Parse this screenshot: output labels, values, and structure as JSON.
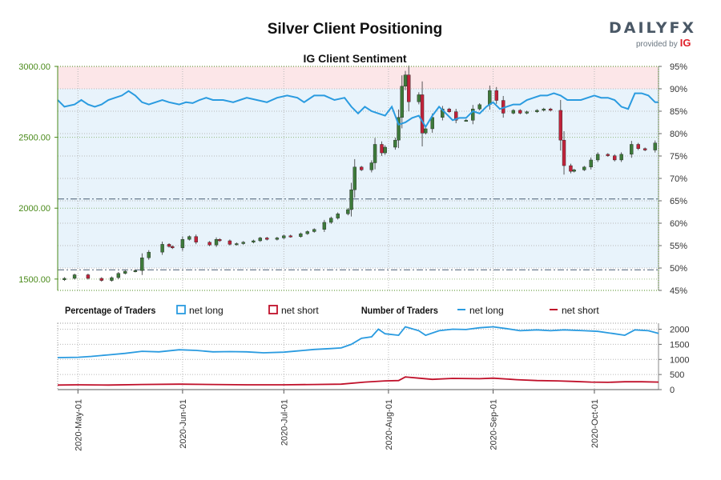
{
  "title": "Silver Client Positioning",
  "brand": {
    "main": "DAILYFX",
    "sub": "provided by",
    "ig": "IG"
  },
  "colors": {
    "net_long": "#2a9be0",
    "net_short": "#c0102a",
    "long_zone": "#e8f3fb",
    "short_zone": "#fce6e8",
    "up_candle": "#3d7a3a",
    "down_candle": "#c0223a",
    "price_axis": "#4a8a1a"
  },
  "chart_data": [
    {
      "type": "candlestick",
      "title": "IG Client Sentiment",
      "y_left": {
        "ticks": [
          "3000.00",
          "2500.00",
          "2000.00",
          "1500.00"
        ],
        "range": [
          1420,
          3000
        ]
      },
      "y_right": {
        "ticks": [
          "95%",
          "90%",
          "85%",
          "80%",
          "75%",
          "70%",
          "65%",
          "60%",
          "55%",
          "50%",
          "45%"
        ],
        "range": [
          45,
          95
        ]
      },
      "reference_lines": [
        2065,
        1565
      ],
      "x_ticks": [
        "2020-May-01",
        "2020-Jun-01",
        "2020-Jul-01",
        "2020-Aug-01",
        "2020-Sep-01",
        "2020-Oct-01"
      ],
      "x_range": [
        "2020-04-25",
        "2020-10-20"
      ],
      "price_series": [
        [
          "2020-04-27",
          1505
        ],
        [
          "2020-04-30",
          1530
        ],
        [
          "2020-05-04",
          1505
        ],
        [
          "2020-05-08",
          1490
        ],
        [
          "2020-05-11",
          1510
        ],
        [
          "2020-05-13",
          1540
        ],
        [
          "2020-05-15",
          1555
        ],
        [
          "2020-05-18",
          1560
        ],
        [
          "2020-05-20",
          1650
        ],
        [
          "2020-05-22",
          1690
        ],
        [
          "2020-05-26",
          1745
        ],
        [
          "2020-05-28",
          1730
        ],
        [
          "2020-05-29",
          1720
        ],
        [
          "2020-06-01",
          1780
        ],
        [
          "2020-06-03",
          1800
        ],
        [
          "2020-06-05",
          1760
        ],
        [
          "2020-06-09",
          1740
        ],
        [
          "2020-06-11",
          1780
        ],
        [
          "2020-06-12",
          1770
        ],
        [
          "2020-06-15",
          1745
        ],
        [
          "2020-06-17",
          1750
        ],
        [
          "2020-06-19",
          1760
        ],
        [
          "2020-06-22",
          1770
        ],
        [
          "2020-06-24",
          1790
        ],
        [
          "2020-06-26",
          1780
        ],
        [
          "2020-06-29",
          1790
        ],
        [
          "2020-07-01",
          1805
        ],
        [
          "2020-07-03",
          1800
        ],
        [
          "2020-07-06",
          1820
        ],
        [
          "2020-07-08",
          1835
        ],
        [
          "2020-07-10",
          1850
        ],
        [
          "2020-07-13",
          1900
        ],
        [
          "2020-07-15",
          1930
        ],
        [
          "2020-07-17",
          1960
        ],
        [
          "2020-07-20",
          1990
        ],
        [
          "2020-07-21",
          2130
        ],
        [
          "2020-07-22",
          2290
        ],
        [
          "2020-07-24",
          2270
        ],
        [
          "2020-07-27",
          2320
        ],
        [
          "2020-07-28",
          2450
        ],
        [
          "2020-07-30",
          2390
        ],
        [
          "2020-07-31",
          2430
        ],
        [
          "2020-08-03",
          2480
        ],
        [
          "2020-08-04",
          2640
        ],
        [
          "2020-08-05",
          2860
        ],
        [
          "2020-08-06",
          2940
        ],
        [
          "2020-08-07",
          2750
        ],
        [
          "2020-08-10",
          2800
        ],
        [
          "2020-08-11",
          2530
        ],
        [
          "2020-08-12",
          2560
        ],
        [
          "2020-08-14",
          2640
        ],
        [
          "2020-08-17",
          2700
        ],
        [
          "2020-08-19",
          2680
        ],
        [
          "2020-08-21",
          2620
        ],
        [
          "2020-08-24",
          2620
        ],
        [
          "2020-08-26",
          2700
        ],
        [
          "2020-08-28",
          2730
        ],
        [
          "2020-08-31",
          2830
        ],
        [
          "2020-09-02",
          2760
        ],
        [
          "2020-09-04",
          2670
        ],
        [
          "2020-09-07",
          2690
        ],
        [
          "2020-09-09",
          2670
        ],
        [
          "2020-09-11",
          2680
        ],
        [
          "2020-09-14",
          2690
        ],
        [
          "2020-09-16",
          2700
        ],
        [
          "2020-09-18",
          2690
        ],
        [
          "2020-09-21",
          2480
        ],
        [
          "2020-09-22",
          2300
        ],
        [
          "2020-09-24",
          2260
        ],
        [
          "2020-09-25",
          2270
        ],
        [
          "2020-09-28",
          2290
        ],
        [
          "2020-09-30",
          2340
        ],
        [
          "2020-10-02",
          2380
        ],
        [
          "2020-10-05",
          2370
        ],
        [
          "2020-10-07",
          2340
        ],
        [
          "2020-10-09",
          2380
        ],
        [
          "2020-10-12",
          2450
        ],
        [
          "2020-10-14",
          2420
        ],
        [
          "2020-10-16",
          2410
        ],
        [
          "2020-10-19",
          2460
        ]
      ],
      "net_long_pct": [
        [
          "2020-04-25",
          87.5
        ],
        [
          "2020-04-27",
          86
        ],
        [
          "2020-04-30",
          86.5
        ],
        [
          "2020-05-02",
          87.5
        ],
        [
          "2020-05-04",
          86.5
        ],
        [
          "2020-05-06",
          86
        ],
        [
          "2020-05-08",
          86.5
        ],
        [
          "2020-05-10",
          87.5
        ],
        [
          "2020-05-12",
          88
        ],
        [
          "2020-05-14",
          88.5
        ],
        [
          "2020-05-16",
          89.5
        ],
        [
          "2020-05-18",
          88.5
        ],
        [
          "2020-05-20",
          87
        ],
        [
          "2020-05-22",
          86.5
        ],
        [
          "2020-05-24",
          87
        ],
        [
          "2020-05-26",
          87.5
        ],
        [
          "2020-05-28",
          87
        ],
        [
          "2020-05-31",
          86.5
        ],
        [
          "2020-06-02",
          87
        ],
        [
          "2020-06-04",
          86.8
        ],
        [
          "2020-06-06",
          87.5
        ],
        [
          "2020-06-08",
          88
        ],
        [
          "2020-06-10",
          87.5
        ],
        [
          "2020-06-13",
          87.5
        ],
        [
          "2020-06-16",
          87
        ],
        [
          "2020-06-18",
          87.5
        ],
        [
          "2020-06-20",
          88
        ],
        [
          "2020-06-23",
          87.5
        ],
        [
          "2020-06-26",
          87
        ],
        [
          "2020-06-29",
          88
        ],
        [
          "2020-07-02",
          88.5
        ],
        [
          "2020-07-05",
          88
        ],
        [
          "2020-07-07",
          87
        ],
        [
          "2020-07-10",
          88.5
        ],
        [
          "2020-07-13",
          88.5
        ],
        [
          "2020-07-16",
          87.5
        ],
        [
          "2020-07-19",
          88
        ],
        [
          "2020-07-21",
          86
        ],
        [
          "2020-07-23",
          84.5
        ],
        [
          "2020-07-25",
          86
        ],
        [
          "2020-07-27",
          85
        ],
        [
          "2020-07-29",
          84.5
        ],
        [
          "2020-07-31",
          84
        ],
        [
          "2020-08-02",
          86
        ],
        [
          "2020-08-04",
          82
        ],
        [
          "2020-08-06",
          82.5
        ],
        [
          "2020-08-08",
          83.5
        ],
        [
          "2020-08-10",
          84
        ],
        [
          "2020-08-12",
          81.5
        ],
        [
          "2020-08-14",
          84
        ],
        [
          "2020-08-16",
          86
        ],
        [
          "2020-08-18",
          84.5
        ],
        [
          "2020-08-20",
          83
        ],
        [
          "2020-08-22",
          83.5
        ],
        [
          "2020-08-24",
          83.5
        ],
        [
          "2020-08-26",
          85
        ],
        [
          "2020-08-28",
          84.5
        ],
        [
          "2020-08-30",
          86
        ],
        [
          "2020-09-01",
          87
        ],
        [
          "2020-09-03",
          85.5
        ],
        [
          "2020-09-05",
          86
        ],
        [
          "2020-09-07",
          86.5
        ],
        [
          "2020-09-09",
          86.5
        ],
        [
          "2020-09-11",
          87.5
        ],
        [
          "2020-09-13",
          88
        ],
        [
          "2020-09-15",
          88.5
        ],
        [
          "2020-09-17",
          88.5
        ],
        [
          "2020-09-19",
          89
        ],
        [
          "2020-09-21",
          88.5
        ],
        [
          "2020-09-23",
          87.5
        ],
        [
          "2020-09-25",
          87.5
        ],
        [
          "2020-09-27",
          87.5
        ],
        [
          "2020-09-29",
          88
        ],
        [
          "2020-10-01",
          88.5
        ],
        [
          "2020-10-03",
          88
        ],
        [
          "2020-10-05",
          88
        ],
        [
          "2020-10-07",
          87.5
        ],
        [
          "2020-10-09",
          86
        ],
        [
          "2020-10-11",
          85.5
        ],
        [
          "2020-10-13",
          89
        ],
        [
          "2020-10-15",
          89
        ],
        [
          "2020-10-17",
          88.5
        ],
        [
          "2020-10-19",
          87
        ],
        [
          "2020-10-20",
          87
        ]
      ],
      "grid": true
    },
    {
      "type": "line",
      "legend": {
        "percentage_title": "Percentage of Traders",
        "number_title": "Number of Traders",
        "net_long": "net long",
        "net_short": "net short"
      },
      "y_ticks": [
        "2000",
        "1500",
        "1000",
        "500",
        "0"
      ],
      "y_range": [
        0,
        2200
      ],
      "series": [
        {
          "name": "net long",
          "values": [
            [
              "2020-04-25",
              1060
            ],
            [
              "2020-05-01",
              1070
            ],
            [
              "2020-05-05",
              1100
            ],
            [
              "2020-05-10",
              1150
            ],
            [
              "2020-05-15",
              1200
            ],
            [
              "2020-05-20",
              1270
            ],
            [
              "2020-05-25",
              1250
            ],
            [
              "2020-05-31",
              1320
            ],
            [
              "2020-06-05",
              1300
            ],
            [
              "2020-06-10",
              1250
            ],
            [
              "2020-06-15",
              1260
            ],
            [
              "2020-06-20",
              1250
            ],
            [
              "2020-06-25",
              1220
            ],
            [
              "2020-07-01",
              1240
            ],
            [
              "2020-07-05",
              1280
            ],
            [
              "2020-07-10",
              1330
            ],
            [
              "2020-07-15",
              1360
            ],
            [
              "2020-07-18",
              1380
            ],
            [
              "2020-07-21",
              1500
            ],
            [
              "2020-07-24",
              1700
            ],
            [
              "2020-07-27",
              1750
            ],
            [
              "2020-07-29",
              2000
            ],
            [
              "2020-07-31",
              1850
            ],
            [
              "2020-08-04",
              1800
            ],
            [
              "2020-08-06",
              2080
            ],
            [
              "2020-08-10",
              1950
            ],
            [
              "2020-08-12",
              1800
            ],
            [
              "2020-08-16",
              1950
            ],
            [
              "2020-08-20",
              2000
            ],
            [
              "2020-08-24",
              1990
            ],
            [
              "2020-08-28",
              2050
            ],
            [
              "2020-09-01",
              2080
            ],
            [
              "2020-09-05",
              2020
            ],
            [
              "2020-09-09",
              1950
            ],
            [
              "2020-09-14",
              1980
            ],
            [
              "2020-09-18",
              1950
            ],
            [
              "2020-09-22",
              1980
            ],
            [
              "2020-09-28",
              1950
            ],
            [
              "2020-10-02",
              1930
            ],
            [
              "2020-10-07",
              1850
            ],
            [
              "2020-10-10",
              1800
            ],
            [
              "2020-10-13",
              1980
            ],
            [
              "2020-10-17",
              1950
            ],
            [
              "2020-10-20",
              1860
            ]
          ]
        },
        {
          "name": "net short",
          "values": [
            [
              "2020-04-25",
              150
            ],
            [
              "2020-05-01",
              160
            ],
            [
              "2020-05-10",
              150
            ],
            [
              "2020-05-20",
              170
            ],
            [
              "2020-05-31",
              180
            ],
            [
              "2020-06-10",
              170
            ],
            [
              "2020-06-20",
              160
            ],
            [
              "2020-07-01",
              160
            ],
            [
              "2020-07-10",
              170
            ],
            [
              "2020-07-18",
              180
            ],
            [
              "2020-07-25",
              250
            ],
            [
              "2020-07-31",
              290
            ],
            [
              "2020-08-04",
              300
            ],
            [
              "2020-08-06",
              420
            ],
            [
              "2020-08-10",
              380
            ],
            [
              "2020-08-14",
              340
            ],
            [
              "2020-08-20",
              370
            ],
            [
              "2020-08-28",
              360
            ],
            [
              "2020-09-01",
              380
            ],
            [
              "2020-09-08",
              330
            ],
            [
              "2020-09-14",
              300
            ],
            [
              "2020-09-20",
              290
            ],
            [
              "2020-09-25",
              270
            ],
            [
              "2020-09-30",
              250
            ],
            [
              "2020-10-05",
              240
            ],
            [
              "2020-10-10",
              260
            ],
            [
              "2020-10-15",
              260
            ],
            [
              "2020-10-20",
              250
            ]
          ]
        }
      ],
      "grid": true
    }
  ]
}
